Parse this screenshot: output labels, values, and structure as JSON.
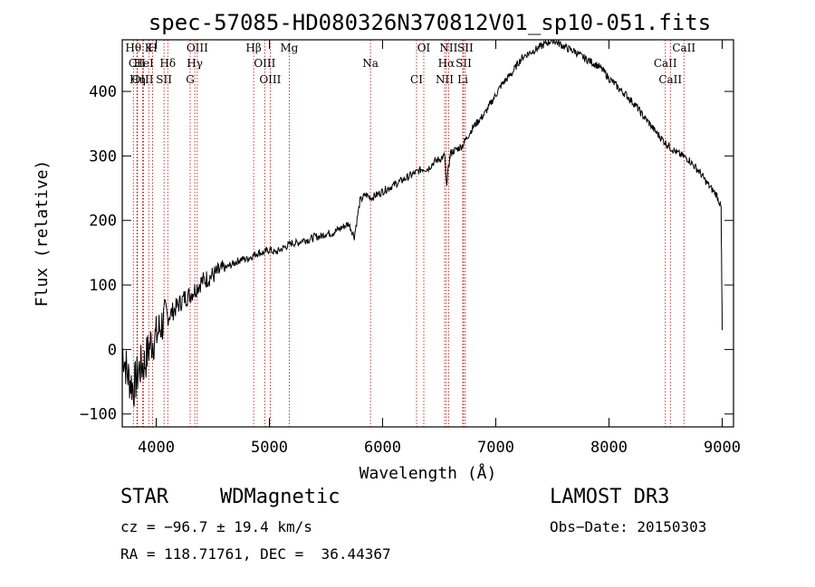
{
  "chart_data": {
    "type": "line",
    "title": "spec-57085-HD080326N370812V01_sp10-051.fits",
    "xlabel": "Wavelength (Å)",
    "ylabel": "Flux (relative)",
    "xlim": [
      3700,
      9100
    ],
    "ylim": [
      -120,
      480
    ],
    "xticks": [
      4000,
      5000,
      6000,
      7000,
      8000,
      9000
    ],
    "yticks": [
      -100,
      0,
      100,
      200,
      300,
      400
    ],
    "series": [
      {
        "name": "spectrum",
        "x": [
          3700,
          3750,
          3800,
          3850,
          3900,
          3950,
          4000,
          4050,
          4100,
          4150,
          4200,
          4250,
          4300,
          4350,
          4400,
          4450,
          4500,
          4550,
          4600,
          4650,
          4700,
          4750,
          4800,
          4850,
          4900,
          4950,
          5000,
          5050,
          5100,
          5150,
          5200,
          5250,
          5300,
          5350,
          5400,
          5450,
          5500,
          5550,
          5600,
          5650,
          5700,
          5750,
          5800,
          5850,
          5900,
          5950,
          6000,
          6050,
          6100,
          6150,
          6200,
          6250,
          6300,
          6350,
          6400,
          6450,
          6500,
          6550,
          6563,
          6600,
          6650,
          6700,
          6750,
          6800,
          6850,
          6900,
          6950,
          7000,
          7050,
          7100,
          7150,
          7200,
          7250,
          7300,
          7350,
          7400,
          7450,
          7500,
          7550,
          7600,
          7650,
          7700,
          7750,
          7800,
          7850,
          7900,
          7950,
          8000,
          8050,
          8100,
          8150,
          8200,
          8250,
          8300,
          8350,
          8400,
          8450,
          8500,
          8550,
          8600,
          8650,
          8700,
          8750,
          8800,
          8850,
          8900,
          8950,
          8990,
          9000
        ],
        "y": [
          0,
          -40,
          -60,
          -30,
          -20,
          10,
          20,
          40,
          50,
          60,
          70,
          80,
          85,
          95,
          105,
          110,
          115,
          120,
          125,
          130,
          135,
          140,
          140,
          145,
          150,
          150,
          155,
          150,
          155,
          160,
          165,
          165,
          170,
          170,
          175,
          175,
          180,
          180,
          185,
          190,
          195,
          175,
          230,
          240,
          235,
          240,
          245,
          250,
          255,
          260,
          265,
          270,
          275,
          280,
          280,
          290,
          295,
          300,
          255,
          305,
          310,
          315,
          330,
          345,
          355,
          365,
          380,
          395,
          410,
          420,
          430,
          445,
          455,
          460,
          465,
          470,
          475,
          480,
          475,
          470,
          465,
          462,
          455,
          450,
          445,
          440,
          432,
          420,
          412,
          402,
          395,
          385,
          375,
          362,
          352,
          340,
          330,
          320,
          312,
          305,
          300,
          295,
          285,
          275,
          262,
          250,
          240,
          220,
          30
        ]
      }
    ],
    "line_labels": [
      {
        "name": "Hθ",
        "wl": 3798
      },
      {
        "name": "CII",
        "wl": 3830
      },
      {
        "name": "OIII",
        "wl": 3880
      },
      {
        "name": "K",
        "wl": 3934
      },
      {
        "name": "HeI",
        "wl": 3889
      },
      {
        "name": "Hη",
        "wl": 3835
      },
      {
        "name": "H",
        "wl": 3969
      },
      {
        "name": "Hδ",
        "wl": 4102
      },
      {
        "name": "SII",
        "wl": 4069
      },
      {
        "name": "OIII",
        "wl": 4363
      },
      {
        "name": "Hγ",
        "wl": 4341
      },
      {
        "name": "G",
        "wl": 4300
      },
      {
        "name": "Hβ",
        "wl": 4861
      },
      {
        "name": "OIII",
        "wl": 4959
      },
      {
        "name": "OIII",
        "wl": 5007
      },
      {
        "name": "Mg",
        "wl": 5175
      },
      {
        "name": "Na",
        "wl": 5893
      },
      {
        "name": "CI",
        "wl": 6300
      },
      {
        "name": "OI",
        "wl": 6364
      },
      {
        "name": "Hα",
        "wl": 6563
      },
      {
        "name": "NII",
        "wl": 6548
      },
      {
        "name": "NII",
        "wl": 6583
      },
      {
        "name": "SII",
        "wl": 6716
      },
      {
        "name": "Li",
        "wl": 6708
      },
      {
        "name": "SII",
        "wl": 6731
      },
      {
        "name": "CaII",
        "wl": 8498
      },
      {
        "name": "CaII",
        "wl": 8542
      },
      {
        "name": "CaII",
        "wl": 8662
      }
    ]
  },
  "info": {
    "object_class": "STAR",
    "subclass": "WDMagnetic",
    "survey": "LAMOST DR3",
    "cz": "cz = −96.7 ± 19.4 km/s",
    "obs_date": "Obs−Date: 20150303",
    "coords": "RA = 118.71761, DEC =  36.44367"
  }
}
